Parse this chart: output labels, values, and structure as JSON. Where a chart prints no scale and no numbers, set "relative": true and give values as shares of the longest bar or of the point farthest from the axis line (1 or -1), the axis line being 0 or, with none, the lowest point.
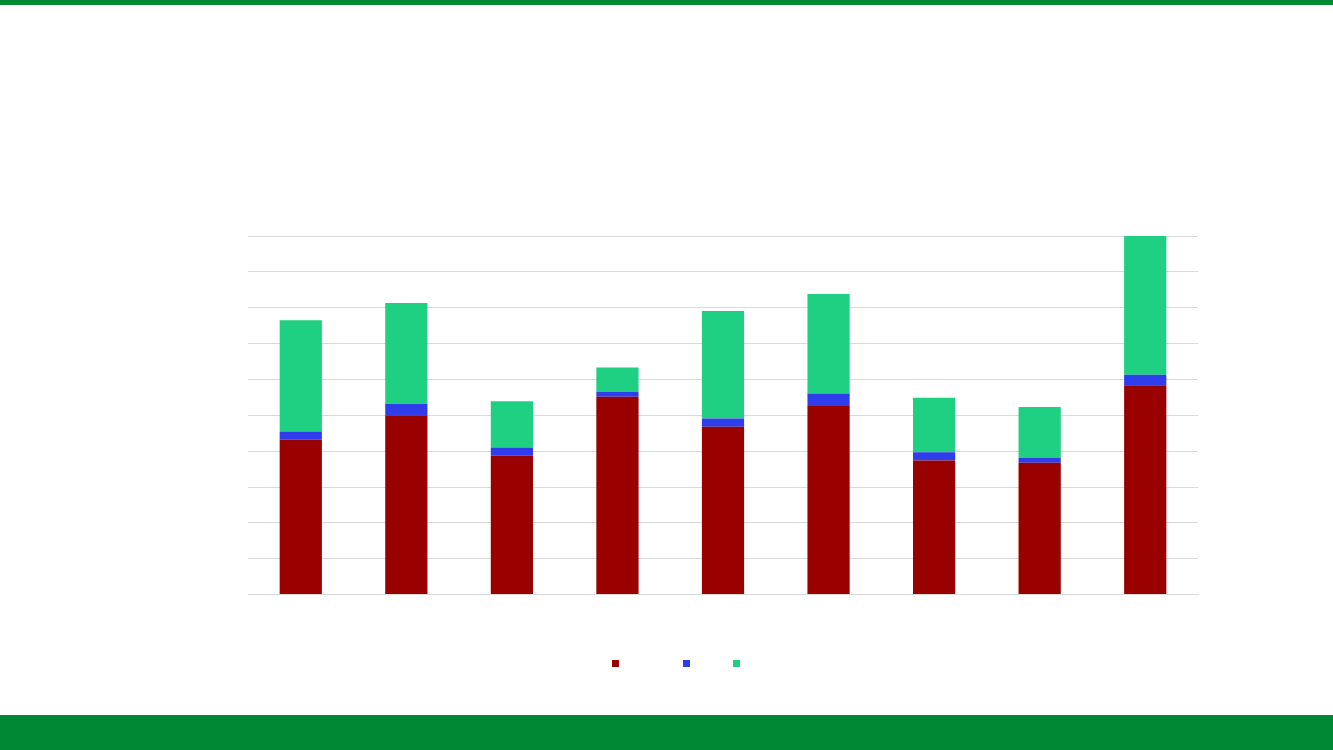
{
  "chart_data": {
    "type": "bar",
    "stacked": true,
    "relative": true,
    "grid": "y",
    "categories": [
      null,
      null,
      null,
      null,
      null,
      null,
      null,
      null,
      null
    ],
    "series": [
      {
        "color": "#990000",
        "values": [
          0.432,
          0.5,
          0.387,
          0.552,
          0.468,
          0.526,
          0.374,
          0.368,
          0.584
        ]
      },
      {
        "color": "#2f3eea",
        "values": [
          0.023,
          0.032,
          0.023,
          0.013,
          0.023,
          0.035,
          0.023,
          0.013,
          0.029
        ]
      },
      {
        "color": "#1fd082",
        "values": [
          0.31,
          0.281,
          0.129,
          0.068,
          0.3,
          0.277,
          0.152,
          0.142,
          0.387
        ]
      }
    ]
  }
}
